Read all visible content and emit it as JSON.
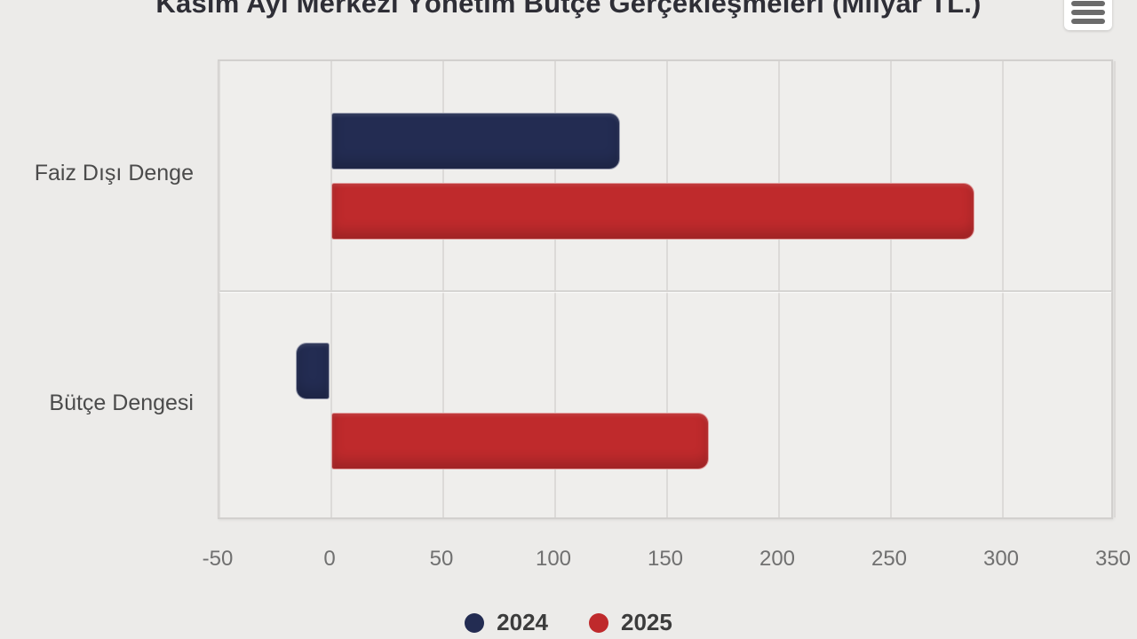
{
  "header": {
    "title": "Kasım Ayı Merkezi Yönetim Bütçe Gerçekleşmeleri (Milyar TL.)",
    "menu_icon": "hamburger-menu-icon"
  },
  "chart_data": {
    "type": "bar",
    "orientation": "horizontal",
    "title": "Kasım Ayı Merkezi Yönetim Bütçe Gerçekleşmeleri (Milyar TL.)",
    "categories": [
      "Faiz Dışı Denge",
      "Bütçe Dengesi"
    ],
    "series": [
      {
        "name": "2024",
        "color": "#232c52",
        "values": [
          129.8,
          -15.8
        ]
      },
      {
        "name": "2025",
        "color": "#bf2a2c",
        "values": [
          288,
          169.5
        ]
      }
    ],
    "xlim": [
      -50,
      350
    ],
    "xticks": [
      -50,
      0,
      50,
      100,
      150,
      200,
      250,
      300,
      350
    ],
    "xlabel": "",
    "ylabel": "",
    "grid": true,
    "legend_position": "bottom",
    "plot_background": "#efeeec",
    "page_background": "#ecebe9"
  }
}
